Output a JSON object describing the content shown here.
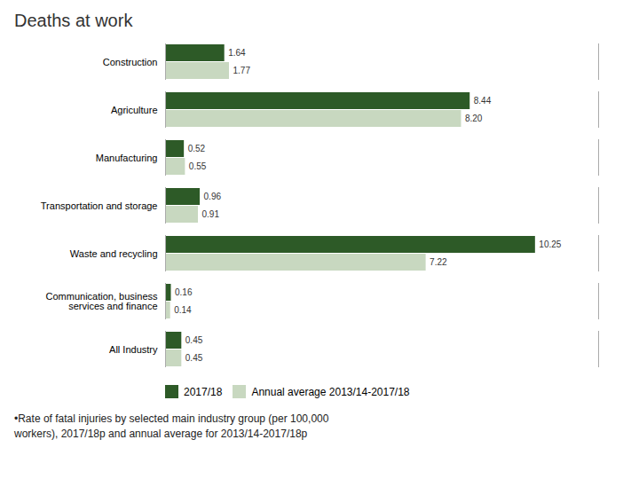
{
  "chart_data": {
    "type": "bar",
    "orientation": "horizontal",
    "title": "Deaths at work",
    "categories": [
      "Construction",
      "Agriculture",
      "Manufacturing",
      "Transportation and storage",
      "Waste and recycling",
      "Communication, business\nservices and finance",
      "All Industry"
    ],
    "series": [
      {
        "name": "2017/18",
        "color": "#2d5a27",
        "values": [
          1.64,
          8.44,
          0.52,
          0.96,
          10.25,
          0.16,
          0.45
        ],
        "value_labels": [
          "1.64",
          "8.44",
          "0.52",
          "0.96",
          "10.25",
          "0.16",
          "0.45"
        ]
      },
      {
        "name": "Annual average 2013/14-2017/18",
        "color": "#c8d8c0",
        "values": [
          1.77,
          8.2,
          0.55,
          0.91,
          7.22,
          0.14,
          0.45
        ],
        "value_labels": [
          "1.77",
          "8.20",
          "0.55",
          "0.91",
          "7.22",
          "0.14",
          "0.45"
        ]
      }
    ],
    "xlim": [
      0,
      12.0
    ],
    "xticks": [],
    "tick_labels": "y",
    "data_labels": true,
    "grid": false,
    "legend": "bottom",
    "annotations": [
      "•Rate of fatal injuries by selected main industry group (per 100,000\nworkers), 2017/18p and annual average for 2013/14-2017/18p"
    ]
  }
}
